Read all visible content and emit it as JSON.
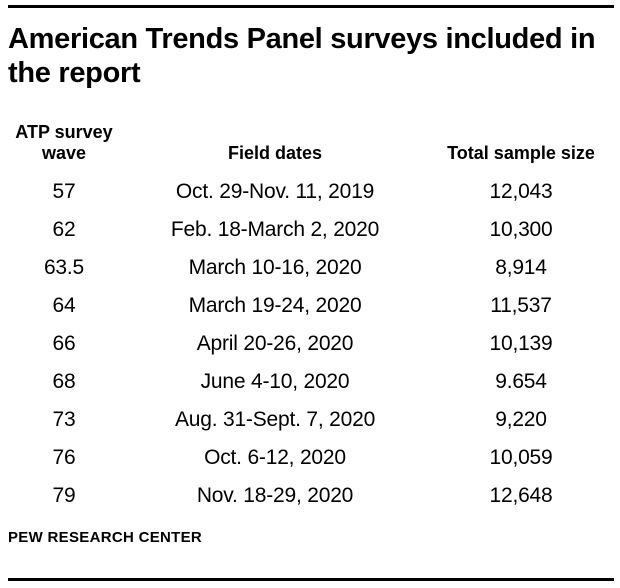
{
  "chart_data": {
    "type": "table",
    "title": "American Trends Panel surveys included in the report",
    "columns": [
      "ATP survey wave",
      "Field dates",
      "Total sample size"
    ],
    "rows": [
      [
        "57",
        "Oct. 29-Nov. 11, 2019",
        "12,043"
      ],
      [
        "62",
        "Feb. 18-March 2, 2020",
        "10,300"
      ],
      [
        "63.5",
        "March 10-16, 2020",
        "8,914"
      ],
      [
        "64",
        "March 19-24, 2020",
        "11,537"
      ],
      [
        "66",
        "April 20-26, 2020",
        "10,139"
      ],
      [
        "68",
        "June 4-10, 2020",
        "9.654"
      ],
      [
        "73",
        "Aug. 31-Sept. 7, 2020",
        "9,220"
      ],
      [
        "76",
        "Oct. 6-12, 2020",
        "10,059"
      ],
      [
        "79",
        "Nov. 18-29, 2020",
        "12,648"
      ]
    ],
    "source": "PEW RESEARCH CENTER",
    "layout": {
      "legend": "none",
      "grid": "off",
      "column_alignment": [
        "center",
        "center",
        "center"
      ]
    }
  },
  "colors": {
    "text": "#000000",
    "rule": "#000000",
    "background": "#ffffff"
  }
}
